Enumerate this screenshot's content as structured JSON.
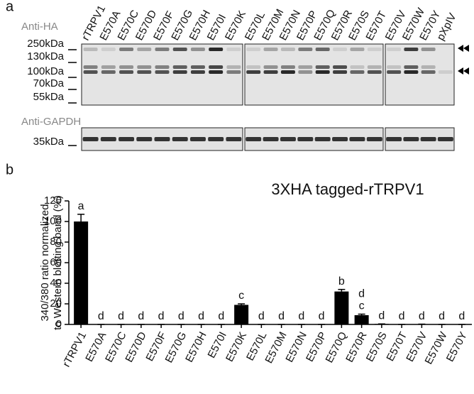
{
  "panel_a": {
    "label": "a",
    "anti_ha": "Anti-HA",
    "anti_gapdh": "Anti-GAPDH",
    "lanes": [
      "rTRPV1",
      "E570A",
      "E570C",
      "E570D",
      "E570F",
      "E570G",
      "E570H",
      "E570I",
      "E570K",
      "E570L",
      "E570M",
      "E570N",
      "E570P",
      "E570Q",
      "E570R",
      "E570S",
      "E570T",
      "E570V",
      "E570W",
      "E570Y",
      "pXpIV"
    ],
    "ha_markers": [
      "250kDa",
      "130kDa",
      "100kDa",
      "70kDa",
      "55kDa"
    ],
    "gapdh_markers": [
      "35kDa"
    ]
  },
  "panel_b_label": "b",
  "chart_data": {
    "type": "bar",
    "title": "3XHA tagged-rTRPV1",
    "y_label": [
      "340/380 ratio normalized",
      "to Western blotting band (%)"
    ],
    "categories": [
      "rTRPV1",
      "E570A",
      "E570C",
      "E570D",
      "E570F",
      "E570G",
      "E570H",
      "E570I",
      "E570K",
      "E570L",
      "E570M",
      "E570N",
      "E570P",
      "E570Q",
      "E570R",
      "E570S",
      "E570T",
      "E570V",
      "E570W",
      "E570Y"
    ],
    "values": [
      100,
      0,
      0,
      0,
      0,
      0,
      0,
      0,
      19,
      0,
      0,
      0,
      0,
      32,
      9,
      0.5,
      0,
      0.3,
      0,
      0
    ],
    "errors": [
      7,
      0,
      0,
      0,
      0,
      0,
      0,
      0,
      1,
      0,
      0,
      0,
      0,
      2,
      1,
      0,
      0,
      0,
      0,
      0
    ],
    "annotations": [
      [
        "a"
      ],
      [
        "d"
      ],
      [
        "d"
      ],
      [
        "d"
      ],
      [
        "d"
      ],
      [
        "d"
      ],
      [
        "d"
      ],
      [
        "d"
      ],
      [
        "c"
      ],
      [
        "d"
      ],
      [
        "d"
      ],
      [
        "d"
      ],
      [
        "d"
      ],
      [
        "b"
      ],
      [
        "d",
        "c"
      ],
      [
        "d"
      ],
      [
        "d"
      ],
      [
        "d"
      ],
      [
        "d"
      ],
      [
        "d"
      ]
    ],
    "color": "#000000",
    "ylim": [
      0,
      120
    ],
    "yticks": [
      0,
      20,
      40,
      60,
      80,
      100,
      120
    ]
  }
}
